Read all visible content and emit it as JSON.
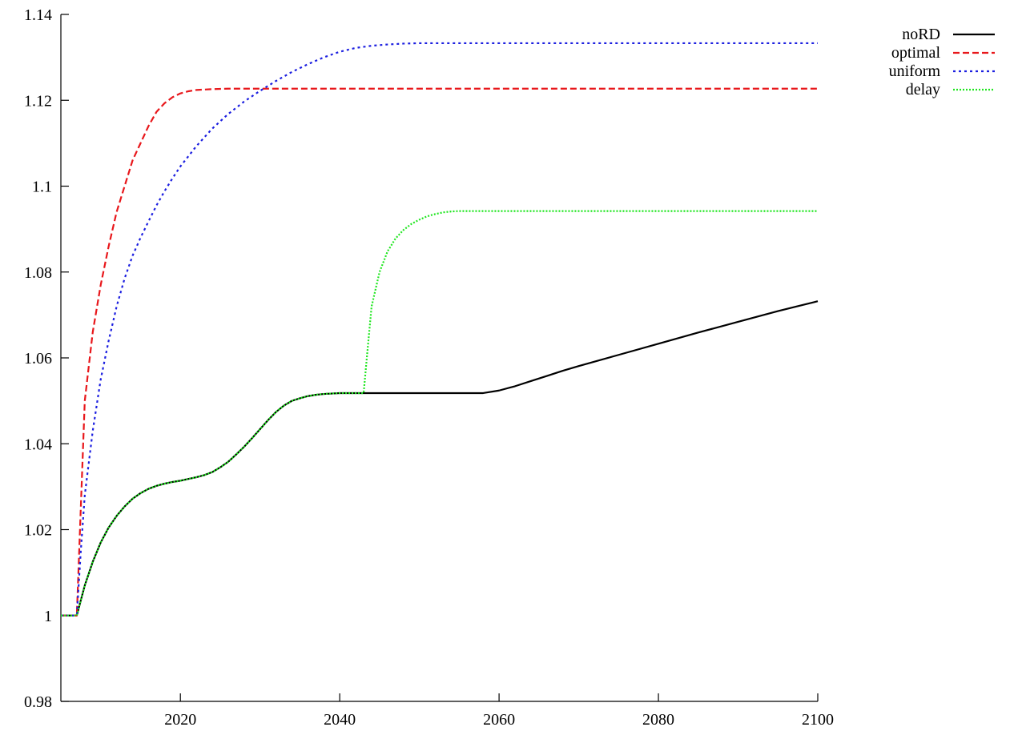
{
  "chart_data": {
    "type": "line",
    "title": "",
    "xlabel": "",
    "ylabel": "",
    "xlim": [
      2005,
      2100
    ],
    "ylim": [
      0.98,
      1.14
    ],
    "grid": false,
    "legend_placement": "top-right",
    "x_ticks": [
      {
        "value": 2020,
        "label": "2020"
      },
      {
        "value": 2040,
        "label": "2040"
      },
      {
        "value": 2060,
        "label": "2060"
      },
      {
        "value": 2080,
        "label": "2080"
      },
      {
        "value": 2100,
        "label": "2100"
      }
    ],
    "y_ticks": [
      {
        "value": 0.98,
        "label": "0.98"
      },
      {
        "value": 1.0,
        "label": "1"
      },
      {
        "value": 1.02,
        "label": "1.02"
      },
      {
        "value": 1.04,
        "label": "1.04"
      },
      {
        "value": 1.06,
        "label": "1.06"
      },
      {
        "value": 1.08,
        "label": "1.08"
      },
      {
        "value": 1.1,
        "label": "1.1"
      },
      {
        "value": 1.12,
        "label": "1.12"
      },
      {
        "value": 1.14,
        "label": "1.14"
      }
    ],
    "series": [
      {
        "name": "noRD",
        "color": "#000000",
        "dash": "solid",
        "points": [
          [
            2005,
            1.0
          ],
          [
            2007,
            1.0
          ],
          [
            2008,
            1.007
          ],
          [
            2009,
            1.0125
          ],
          [
            2010,
            1.017
          ],
          [
            2011,
            1.0205
          ],
          [
            2012,
            1.0232
          ],
          [
            2013,
            1.0254
          ],
          [
            2014,
            1.0272
          ],
          [
            2015,
            1.0285
          ],
          [
            2016,
            1.0295
          ],
          [
            2017,
            1.0302
          ],
          [
            2018,
            1.0307
          ],
          [
            2019,
            1.0311
          ],
          [
            2020,
            1.0314
          ],
          [
            2021,
            1.0318
          ],
          [
            2022,
            1.0322
          ],
          [
            2023,
            1.0327
          ],
          [
            2024,
            1.0334
          ],
          [
            2025,
            1.0345
          ],
          [
            2026,
            1.0358
          ],
          [
            2027,
            1.0375
          ],
          [
            2028,
            1.0393
          ],
          [
            2029,
            1.0413
          ],
          [
            2030,
            1.0434
          ],
          [
            2031,
            1.0455
          ],
          [
            2032,
            1.0474
          ],
          [
            2033,
            1.0489
          ],
          [
            2034,
            1.05
          ],
          [
            2035,
            1.0506
          ],
          [
            2036,
            1.0511
          ],
          [
            2037,
            1.0514
          ],
          [
            2038,
            1.0516
          ],
          [
            2040,
            1.0518
          ],
          [
            2043,
            1.0518
          ],
          [
            2050,
            1.0518
          ],
          [
            2058,
            1.0518
          ],
          [
            2060,
            1.0524
          ],
          [
            2062,
            1.0534
          ],
          [
            2064,
            1.0546
          ],
          [
            2066,
            1.0558
          ],
          [
            2068,
            1.057
          ],
          [
            2070,
            1.0581
          ],
          [
            2075,
            1.0607
          ],
          [
            2080,
            1.0633
          ],
          [
            2085,
            1.0659
          ],
          [
            2090,
            1.0684
          ],
          [
            2095,
            1.0709
          ],
          [
            2100,
            1.0732
          ]
        ]
      },
      {
        "name": "optimal",
        "color": "#e8171b",
        "dash": "dashed",
        "points": [
          [
            2005,
            1.0
          ],
          [
            2007,
            1.0
          ],
          [
            2007.5,
            1.025
          ],
          [
            2008,
            1.05
          ],
          [
            2009,
            1.066
          ],
          [
            2010,
            1.077
          ],
          [
            2011,
            1.086
          ],
          [
            2012,
            1.094
          ],
          [
            2013,
            1.1
          ],
          [
            2014,
            1.106
          ],
          [
            2015,
            1.11
          ],
          [
            2016,
            1.114
          ],
          [
            2017,
            1.1173
          ],
          [
            2018,
            1.1193
          ],
          [
            2019,
            1.1207
          ],
          [
            2020,
            1.1216
          ],
          [
            2021,
            1.1221
          ],
          [
            2022,
            1.1224
          ],
          [
            2024,
            1.1226
          ],
          [
            2026,
            1.1227
          ],
          [
            2030,
            1.1227
          ],
          [
            2060,
            1.1227
          ],
          [
            2100,
            1.1227
          ]
        ]
      },
      {
        "name": "uniform",
        "color": "#1c1fe0",
        "dash": "dotted",
        "points": [
          [
            2005,
            1.0
          ],
          [
            2007,
            1.0
          ],
          [
            2007.5,
            1.015
          ],
          [
            2008,
            1.028
          ],
          [
            2009,
            1.043
          ],
          [
            2010,
            1.055
          ],
          [
            2011,
            1.064
          ],
          [
            2012,
            1.072
          ],
          [
            2013,
            1.0785
          ],
          [
            2014,
            1.0838
          ],
          [
            2015,
            1.088
          ],
          [
            2016,
            1.0918
          ],
          [
            2017,
            1.0955
          ],
          [
            2018,
            1.0988
          ],
          [
            2019,
            1.1018
          ],
          [
            2020,
            1.1046
          ],
          [
            2022,
            1.1093
          ],
          [
            2024,
            1.1134
          ],
          [
            2026,
            1.1168
          ],
          [
            2028,
            1.1197
          ],
          [
            2030,
            1.1222
          ],
          [
            2032,
            1.1245
          ],
          [
            2034,
            1.1266
          ],
          [
            2036,
            1.1284
          ],
          [
            2038,
            1.13
          ],
          [
            2040,
            1.1313
          ],
          [
            2042,
            1.1322
          ],
          [
            2044,
            1.1327
          ],
          [
            2046,
            1.133
          ],
          [
            2048,
            1.1332
          ],
          [
            2050,
            1.1333
          ],
          [
            2060,
            1.1333
          ],
          [
            2100,
            1.1333
          ]
        ]
      },
      {
        "name": "delay",
        "color": "#1fe61f",
        "dash": "dotted-dense",
        "points": [
          [
            2005,
            1.0
          ],
          [
            2007,
            1.0
          ],
          [
            2008,
            1.007
          ],
          [
            2009,
            1.0125
          ],
          [
            2010,
            1.017
          ],
          [
            2011,
            1.0205
          ],
          [
            2012,
            1.0232
          ],
          [
            2013,
            1.0254
          ],
          [
            2014,
            1.0272
          ],
          [
            2015,
            1.0285
          ],
          [
            2016,
            1.0295
          ],
          [
            2017,
            1.0302
          ],
          [
            2018,
            1.0307
          ],
          [
            2019,
            1.0311
          ],
          [
            2020,
            1.0314
          ],
          [
            2021,
            1.0318
          ],
          [
            2022,
            1.0322
          ],
          [
            2023,
            1.0327
          ],
          [
            2024,
            1.0334
          ],
          [
            2025,
            1.0345
          ],
          [
            2026,
            1.0358
          ],
          [
            2027,
            1.0375
          ],
          [
            2028,
            1.0393
          ],
          [
            2029,
            1.0413
          ],
          [
            2030,
            1.0434
          ],
          [
            2031,
            1.0455
          ],
          [
            2032,
            1.0474
          ],
          [
            2033,
            1.0489
          ],
          [
            2034,
            1.05
          ],
          [
            2035,
            1.0506
          ],
          [
            2036,
            1.0511
          ],
          [
            2037,
            1.0514
          ],
          [
            2038,
            1.0516
          ],
          [
            2040,
            1.0518
          ],
          [
            2043,
            1.0518
          ],
          [
            2043.5,
            1.062
          ],
          [
            2044,
            1.072
          ],
          [
            2045,
            1.08
          ],
          [
            2046,
            1.0848
          ],
          [
            2047,
            1.0878
          ],
          [
            2048,
            1.0898
          ],
          [
            2049,
            1.0912
          ],
          [
            2050,
            1.0922
          ],
          [
            2051,
            1.093
          ],
          [
            2052,
            1.0935
          ],
          [
            2053,
            1.0939
          ],
          [
            2054,
            1.0941
          ],
          [
            2055,
            1.0942
          ],
          [
            2060,
            1.0942
          ],
          [
            2100,
            1.0942
          ]
        ]
      }
    ]
  }
}
